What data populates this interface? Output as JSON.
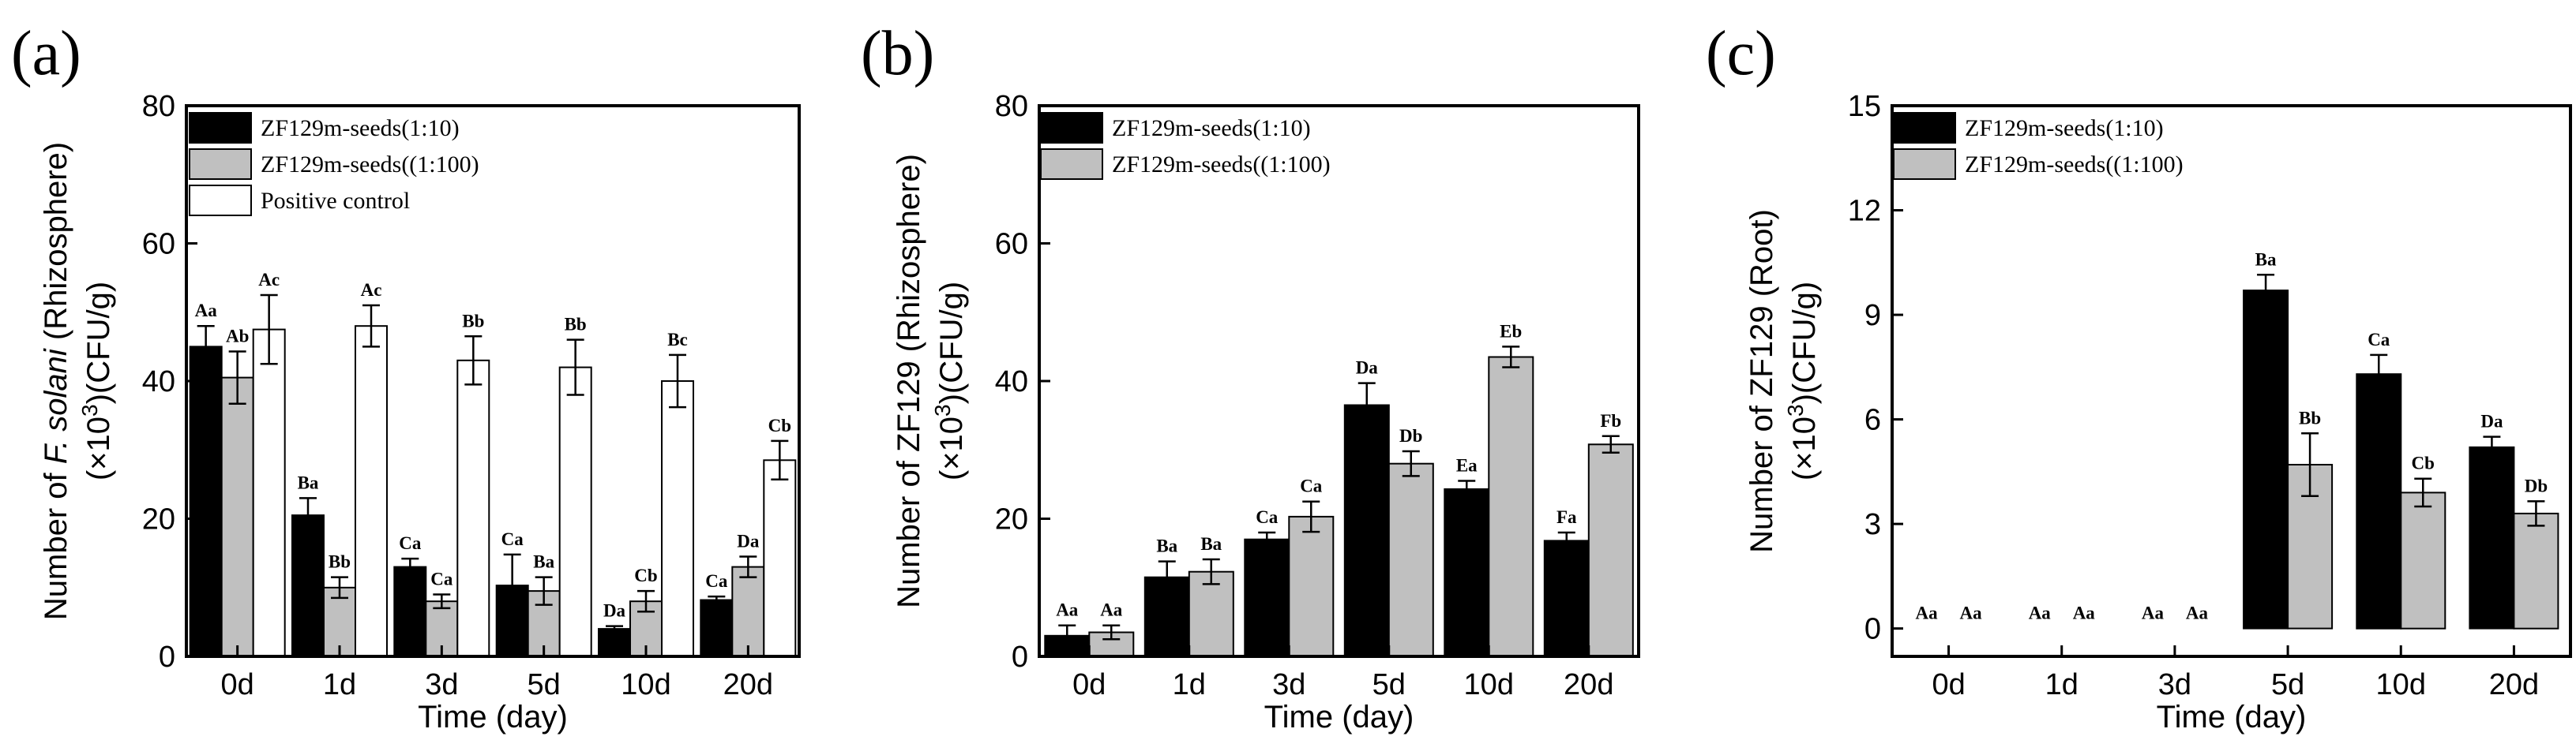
{
  "colors": {
    "series_1_10": "#000000",
    "series_1_100": "#c0c0c0",
    "positive_control": "#ffffff",
    "axes": "#000000"
  },
  "chart_data": [
    {
      "type": "bar",
      "panel_label": "(a)",
      "categories": [
        "0d",
        "1d",
        "3d",
        "5d",
        "10d",
        "20d"
      ],
      "xlabel": "Time (day)",
      "ylabel_pre": "Number of ",
      "ylabel_italic": "F. solani",
      "ylabel_post": " (Rhizosphere)",
      "ylabel_line2_pre": "(×10",
      "ylabel_line2_sup": "3",
      "ylabel_line2_post": ")(CFU/g)",
      "ylim": [
        0,
        80
      ],
      "yticks": [
        0,
        20,
        40,
        60,
        80
      ],
      "ytick_labels": [
        "0",
        "20",
        "40",
        "60",
        "80"
      ],
      "legend_position": "top-left",
      "grid": false,
      "series": [
        {
          "name": "ZF129m-seeds(1:10)",
          "color": "#000000",
          "values": [
            45,
            20.5,
            13,
            10.3,
            4,
            8.2
          ],
          "errors": [
            3,
            2.5,
            1.2,
            4.5,
            0.4,
            0.5
          ],
          "labels": [
            "Aa",
            "Ba",
            "Ca",
            "Ca",
            "Da",
            "Ca"
          ]
        },
        {
          "name": "ZF129m-seeds((1:100)",
          "color": "#c0c0c0",
          "values": [
            40.5,
            10,
            8,
            9.5,
            8,
            13
          ],
          "errors": [
            3.8,
            1.5,
            1,
            2,
            1.5,
            1.5
          ],
          "labels": [
            "Ab",
            "Bb",
            "Ca",
            "Ba",
            "Cb",
            "Da"
          ]
        },
        {
          "name": "Positive control",
          "color": "#ffffff",
          "values": [
            47.5,
            48,
            43,
            42,
            40,
            28.5
          ],
          "errors": [
            5,
            3,
            3.5,
            4,
            3.8,
            2.8
          ],
          "labels": [
            "Ac",
            "Ac",
            "Bb",
            "Bb",
            "Bc",
            "Cb"
          ]
        }
      ]
    },
    {
      "type": "bar",
      "panel_label": "(b)",
      "categories": [
        "0d",
        "1d",
        "3d",
        "5d",
        "10d",
        "20d"
      ],
      "xlabel": "Time (day)",
      "ylabel_pre": "Number of ZF129 (Rhizosphere)",
      "ylabel_italic": "",
      "ylabel_post": "",
      "ylabel_line2_pre": "(×10",
      "ylabel_line2_sup": "3",
      "ylabel_line2_post": ")(CFU/g)",
      "ylim": [
        0,
        80
      ],
      "yticks": [
        0,
        20,
        40,
        60,
        80
      ],
      "ytick_labels": [
        "0",
        "20",
        "40",
        "60",
        "80"
      ],
      "legend_position": "top-left",
      "grid": false,
      "series": [
        {
          "name": "ZF129m-seeds(1:10)",
          "color": "#000000",
          "values": [
            3,
            11.5,
            17,
            36.5,
            24.3,
            16.8
          ],
          "errors": [
            1.5,
            2.3,
            1,
            3.2,
            1.2,
            1.2
          ],
          "labels": [
            "Aa",
            "Ba",
            "Ca",
            "Da",
            "Ea",
            "Fa"
          ]
        },
        {
          "name": "ZF129m-seeds((1:100)",
          "color": "#c0c0c0",
          "values": [
            3.5,
            12.3,
            20.3,
            28,
            43.5,
            30.8
          ],
          "errors": [
            1,
            1.8,
            2.2,
            1.8,
            1.5,
            1.2
          ],
          "labels": [
            "Aa",
            "Ba",
            "Ca",
            "Db",
            "Eb",
            "Fb"
          ]
        }
      ]
    },
    {
      "type": "bar",
      "panel_label": "(c)",
      "categories": [
        "0d",
        "1d",
        "3d",
        "5d",
        "10d",
        "20d"
      ],
      "xlabel": "Time (day)",
      "ylabel_pre": "Number of ZF129 (Root)",
      "ylabel_italic": "",
      "ylabel_post": "",
      "ylabel_line2_pre": "(×10",
      "ylabel_line2_sup": "3",
      "ylabel_line2_post": ")(CFU/g)",
      "ylim": [
        -0.8,
        15
      ],
      "yticks": [
        0,
        3,
        6,
        9,
        12,
        15
      ],
      "ytick_labels": [
        "0",
        "3",
        "6",
        "9",
        "12",
        "15"
      ],
      "legend_position": "top-left",
      "grid": false,
      "series": [
        {
          "name": "ZF129m-seeds(1:10)",
          "color": "#000000",
          "values": [
            0,
            0,
            0,
            9.7,
            7.3,
            5.2
          ],
          "errors": [
            0,
            0,
            0,
            0.45,
            0.55,
            0.3
          ],
          "labels": [
            "Aa",
            "Aa",
            "Aa",
            "Ba",
            "Ca",
            "Da"
          ]
        },
        {
          "name": "ZF129m-seeds((1:100)",
          "color": "#c0c0c0",
          "values": [
            0,
            0,
            0,
            4.7,
            3.9,
            3.3
          ],
          "errors": [
            0,
            0,
            0,
            0.9,
            0.4,
            0.35
          ],
          "labels": [
            "Aa",
            "Aa",
            "Aa",
            "Bb",
            "Cb",
            "Db"
          ]
        }
      ]
    }
  ]
}
